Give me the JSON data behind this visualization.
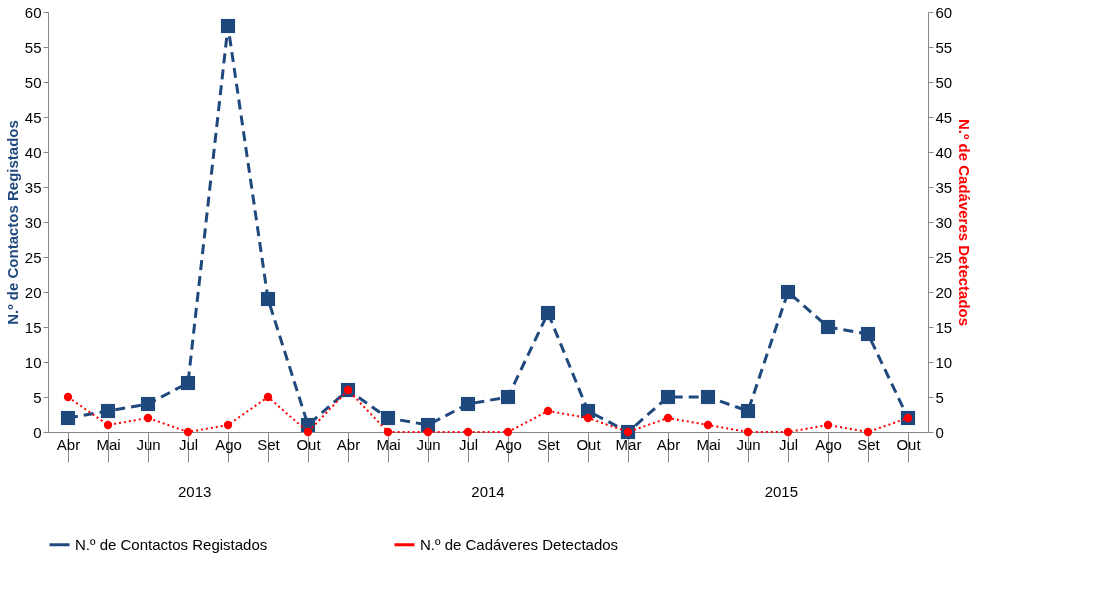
{
  "chart_data": {
    "type": "line",
    "ylabel": "N.º de Contactos Registados",
    "y2label": "N.º de Cadáveres Detectados",
    "categories": [
      "Abr",
      "Mai",
      "Jun",
      "Jul",
      "Ago",
      "Set",
      "Out",
      "Abr",
      "Mai",
      "Jun",
      "Jul",
      "Ago",
      "Set",
      "Out",
      "Mar",
      "Abr",
      "Mai",
      "Jun",
      "Jul",
      "Ago",
      "Set",
      "Out"
    ],
    "series": [
      {
        "name": "N.º de Contactos Registados",
        "color": "#1f497d",
        "marker": "square",
        "line_style": "dashed",
        "values": [
          2,
          3,
          4,
          7,
          58,
          19,
          1,
          6,
          2,
          1,
          4,
          5,
          17,
          3,
          0,
          5,
          5,
          3,
          20,
          15,
          14,
          2
        ]
      },
      {
        "name": "N.º de Cadáveres Detectados",
        "color": "#ff0000",
        "marker": "circle",
        "line_style": "dotted",
        "axis": "y2",
        "values": [
          5,
          1,
          2,
          0,
          1,
          5,
          0,
          6,
          0,
          0,
          0,
          0,
          3,
          2,
          0,
          2,
          1,
          0,
          0,
          1,
          0,
          2
        ]
      }
    ],
    "ylim": [
      0,
      60
    ],
    "yticks": [
      0,
      5,
      10,
      15,
      20,
      25,
      30,
      35,
      40,
      45,
      50,
      55,
      60
    ],
    "y2lim": [
      0,
      60
    ],
    "y2ticks": [
      0,
      5,
      10,
      15,
      20,
      25,
      30,
      35,
      40,
      45,
      50,
      55,
      60
    ],
    "annotations": [
      "2013",
      "2014",
      "2015"
    ],
    "grid": false,
    "legend": "bottom"
  }
}
